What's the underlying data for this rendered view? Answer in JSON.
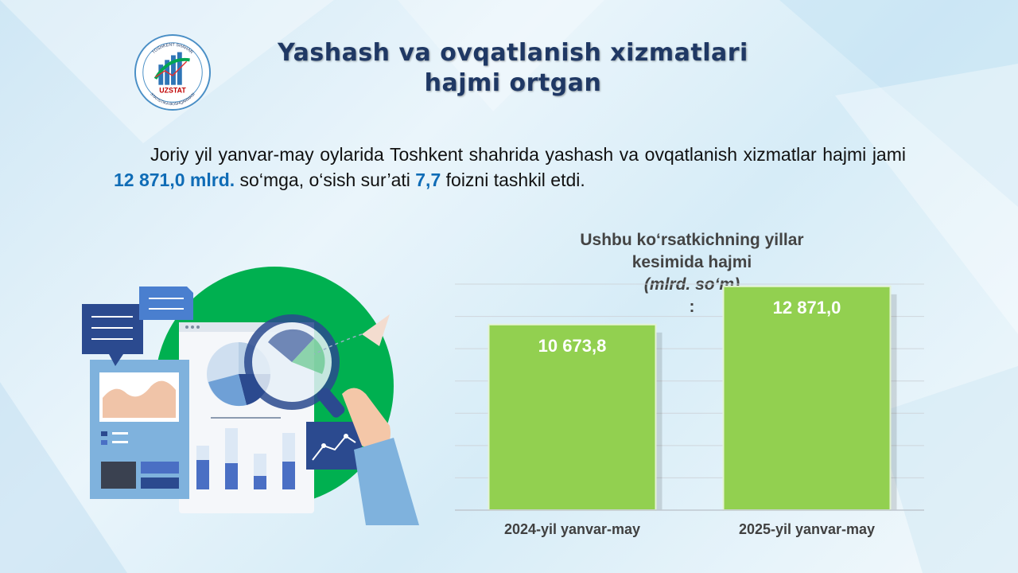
{
  "title": {
    "line1": "Yashash va ovqatlanish xizmatlari",
    "line2": "hajmi ortgan"
  },
  "logo": {
    "brand": "UZSTAT",
    "ring_top": "TOSHKENT SHAHAR",
    "ring_bottom": "STATISTIKA BOSHQARMASI"
  },
  "paragraph": {
    "part1": "Joriy yil yanvar-may oylarida Toshkent shahrida yashash va ovqatlanish xizmatlar hajmi jami ",
    "value_total": "12 871,0 mlrd.",
    "part2": " so‘mga, o‘sish sur’ati ",
    "value_growth": "7,7",
    "part3": " foizni tashkil etdi."
  },
  "chart_title": {
    "line1": "Ushbu ko‘rsatkichning yillar",
    "line2_prefix": "kesimida hajmi ",
    "line2_unit": "(mlrd. so‘m)",
    "line2_suffix": ":"
  },
  "chart_data": {
    "type": "bar",
    "categories": [
      "2024-yil yanvar-may",
      "2025-yil yanvar-may"
    ],
    "values": [
      10673.8,
      12871.0
    ],
    "data_labels": [
      "10 673,8",
      "12 871,0"
    ],
    "ylim": [
      0,
      13000
    ],
    "grid": true,
    "bar_color": "#92d050"
  },
  "colors": {
    "title": "#1f3864",
    "highlight": "#0f6cb6",
    "bar": "#92d050",
    "illustration_circle": "#00b050"
  }
}
